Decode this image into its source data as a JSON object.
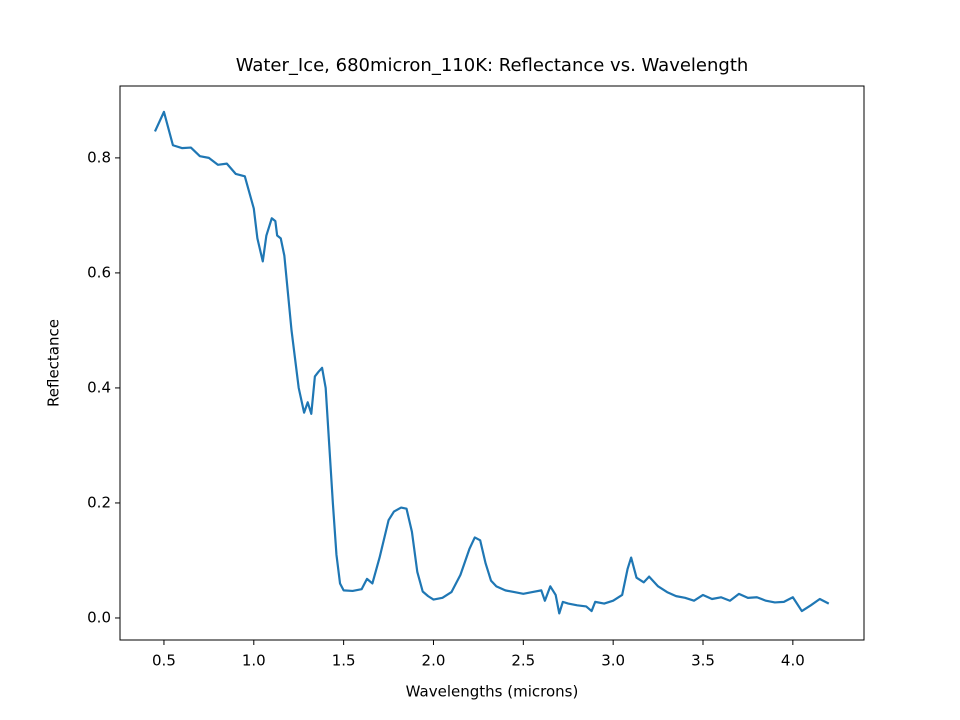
{
  "chart_data": {
    "type": "line",
    "title": "Water_Ice, 680micron_110K: Reflectance vs. Wavelength",
    "x_label": "Wavelengths (microns)",
    "y_label": "Reflectance",
    "x": [
      0.45,
      0.5,
      0.55,
      0.6,
      0.65,
      0.7,
      0.75,
      0.8,
      0.85,
      0.9,
      0.95,
      1.0,
      1.02,
      1.05,
      1.07,
      1.1,
      1.12,
      1.13,
      1.15,
      1.17,
      1.19,
      1.21,
      1.23,
      1.25,
      1.28,
      1.3,
      1.32,
      1.34,
      1.36,
      1.38,
      1.4,
      1.42,
      1.44,
      1.46,
      1.48,
      1.5,
      1.55,
      1.6,
      1.63,
      1.66,
      1.7,
      1.75,
      1.78,
      1.82,
      1.85,
      1.88,
      1.91,
      1.94,
      1.97,
      2.0,
      2.05,
      2.1,
      2.15,
      2.2,
      2.23,
      2.26,
      2.29,
      2.32,
      2.35,
      2.4,
      2.45,
      2.5,
      2.55,
      2.6,
      2.62,
      2.65,
      2.68,
      2.7,
      2.72,
      2.75,
      2.8,
      2.85,
      2.88,
      2.9,
      2.95,
      3.0,
      3.05,
      3.08,
      3.1,
      3.13,
      3.17,
      3.2,
      3.25,
      3.3,
      3.35,
      3.4,
      3.45,
      3.5,
      3.55,
      3.6,
      3.65,
      3.7,
      3.75,
      3.8,
      3.85,
      3.9,
      3.95,
      4.0,
      4.05,
      4.1,
      4.15,
      4.2
    ],
    "series": [
      {
        "name": "Water_Ice",
        "color": "#1f77b4",
        "values": [
          0.846,
          0.88,
          0.822,
          0.817,
          0.818,
          0.803,
          0.8,
          0.788,
          0.79,
          0.772,
          0.768,
          0.712,
          0.66,
          0.62,
          0.665,
          0.695,
          0.69,
          0.665,
          0.66,
          0.63,
          0.565,
          0.5,
          0.45,
          0.4,
          0.357,
          0.375,
          0.355,
          0.42,
          0.428,
          0.435,
          0.4,
          0.3,
          0.2,
          0.11,
          0.06,
          0.048,
          0.047,
          0.05,
          0.068,
          0.06,
          0.105,
          0.17,
          0.185,
          0.192,
          0.19,
          0.15,
          0.08,
          0.046,
          0.038,
          0.032,
          0.035,
          0.045,
          0.075,
          0.12,
          0.14,
          0.135,
          0.095,
          0.065,
          0.055,
          0.048,
          0.045,
          0.042,
          0.045,
          0.048,
          0.03,
          0.055,
          0.04,
          0.008,
          0.028,
          0.025,
          0.022,
          0.02,
          0.012,
          0.028,
          0.025,
          0.03,
          0.04,
          0.085,
          0.105,
          0.07,
          0.062,
          0.072,
          0.055,
          0.045,
          0.038,
          0.035,
          0.03,
          0.04,
          0.033,
          0.036,
          0.03,
          0.042,
          0.035,
          0.036,
          0.03,
          0.027,
          0.028,
          0.036,
          0.012,
          0.022,
          0.033,
          0.025
        ]
      }
    ],
    "xlim": [
      0.2554,
      4.396
    ],
    "ylim": [
      -0.0383,
      0.925
    ],
    "xticks": [
      0.5,
      {
        "value": 1,
        "label": "1.0"
      },
      1.5,
      {
        "value": 2,
        "label": "2.0"
      },
      2.5,
      {
        "value": 3,
        "label": "3.0"
      },
      3.5,
      {
        "value": 4,
        "label": "4.0"
      }
    ],
    "yticks": [
      {
        "value": 0,
        "label": "0.0"
      },
      0.2,
      0.4,
      0.6,
      0.8
    ],
    "grid": false
  }
}
